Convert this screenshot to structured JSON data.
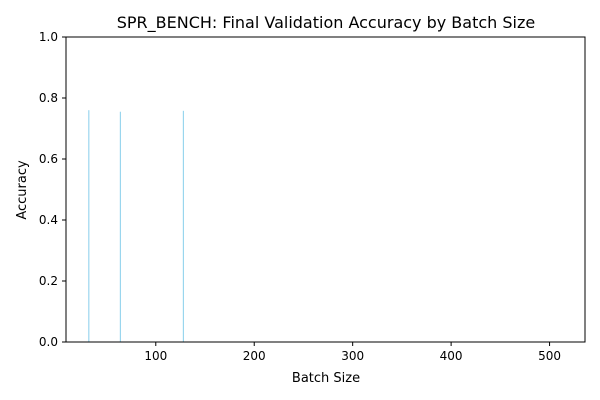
{
  "chart_data": {
    "type": "bar",
    "title": "SPR_BENCH: Final Validation Accuracy by Batch Size",
    "xlabel": "Batch Size",
    "ylabel": "Accuracy",
    "x": [
      32,
      64,
      128,
      256,
      512
    ],
    "values": [
      0.76,
      0.755,
      0.758,
      0.0,
      0.0
    ],
    "xlim": [
      8.8,
      536
    ],
    "ylim": [
      0,
      1.0
    ],
    "xticks": [
      100,
      200,
      300,
      400,
      500
    ],
    "yticks": [
      0.0,
      0.2,
      0.4,
      0.6,
      0.8,
      1.0
    ],
    "grid": false,
    "bar_color": "#87ceeb"
  }
}
